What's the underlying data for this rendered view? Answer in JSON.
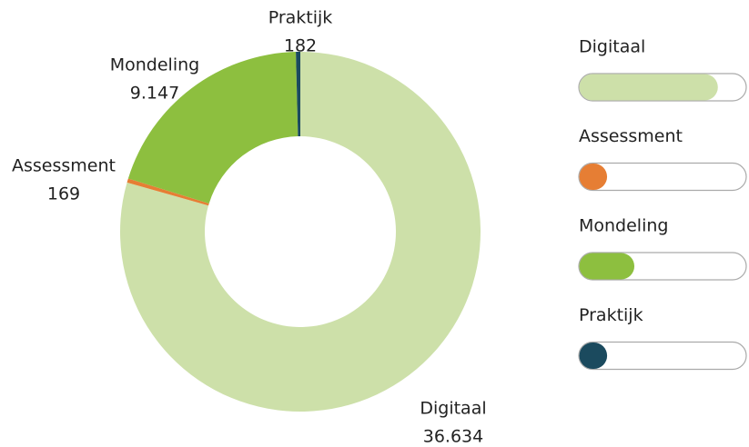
{
  "chart_data": {
    "type": "donut",
    "categories": [
      "Digitaal",
      "Assessment",
      "Mondeling",
      "Praktijk"
    ],
    "values": [
      36634,
      169,
      9147,
      182
    ],
    "value_labels": [
      "36.634",
      "169",
      "9.147",
      "182"
    ],
    "colors": [
      "#cde0a9",
      "#e67e34",
      "#8dbf3f",
      "#1b4a5e"
    ],
    "legend": "right"
  }
}
